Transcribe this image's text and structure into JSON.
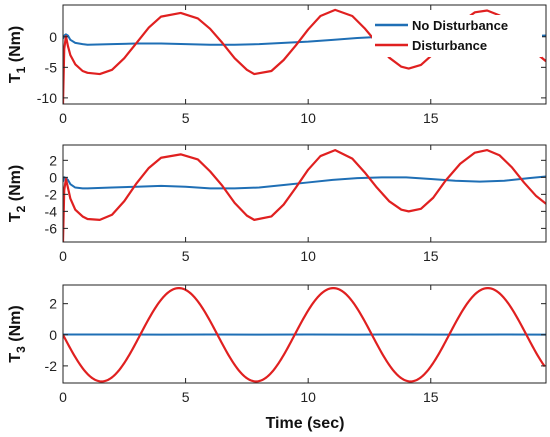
{
  "chart_data": [
    {
      "type": "line",
      "ylabel": {
        "main": "T",
        "sub": "1",
        "unit": " (Nm)"
      },
      "xlim": [
        0,
        19.7
      ],
      "ylim": [
        -11,
        5.2
      ],
      "yticks": [
        -10,
        -5,
        0
      ],
      "ytick_labels": [
        "-10",
        "-5",
        "0"
      ],
      "xticks": [
        0,
        5,
        10,
        15
      ],
      "xtick_labels": [
        "0",
        "5",
        "10",
        "15"
      ],
      "legend": {
        "position": "top-right"
      },
      "series": [
        {
          "name": "No Disturbance",
          "color": "#1f6fb5",
          "x": [
            0,
            0.05,
            0.12,
            0.2,
            0.3,
            0.5,
            0.8,
            1,
            2,
            3,
            4,
            5,
            6,
            7,
            8,
            9,
            10,
            11,
            12,
            13,
            14,
            15,
            16,
            17,
            18,
            19,
            19.7
          ],
          "y": [
            -0.3,
            0.2,
            0.4,
            0.2,
            -0.5,
            -1,
            -1.2,
            -1.3,
            -1.2,
            -1.1,
            -1.1,
            -1.2,
            -1.3,
            -1.3,
            -1.2,
            -1,
            -0.8,
            -0.5,
            -0.2,
            0,
            0,
            -0.1,
            -0.2,
            -0.2,
            -0.1,
            0.1,
            0.2
          ]
        },
        {
          "name": "Disturbance",
          "color": "#e02020",
          "x": [
            0,
            0.05,
            0.12,
            0.2,
            0.3,
            0.5,
            0.8,
            1,
            1.5,
            2,
            2.5,
            3,
            3.5,
            4,
            4.8,
            5.5,
            6,
            6.5,
            7,
            7.5,
            7.8,
            8.5,
            9,
            9.5,
            10,
            10.5,
            11.1,
            11.8,
            12.3,
            12.8,
            13.3,
            13.8,
            14.1,
            14.6,
            15.1,
            15.6,
            16.2,
            16.8,
            17.3,
            17.8,
            18.3,
            18.8,
            19.3,
            19.7
          ],
          "y": [
            -11,
            -2,
            0.1,
            -1.5,
            -3,
            -4.5,
            -5.6,
            -5.9,
            -6.1,
            -5.4,
            -3.5,
            -1,
            1.5,
            3.3,
            3.9,
            3,
            1.3,
            -1,
            -3.5,
            -5.4,
            -6.1,
            -5.6,
            -3.8,
            -1.4,
            1.2,
            3.4,
            4.4,
            3.4,
            1.4,
            -1,
            -3.4,
            -4.9,
            -5.2,
            -4.6,
            -2.8,
            -0.3,
            2.3,
            4,
            4.3,
            3.5,
            1.8,
            -0.5,
            -2.7,
            -4
          ]
        }
      ]
    },
    {
      "type": "line",
      "ylabel": {
        "main": "T",
        "sub": "2",
        "unit": " (Nm)"
      },
      "xlim": [
        0,
        19.7
      ],
      "ylim": [
        -7.6,
        3.8
      ],
      "yticks": [
        -6,
        -4,
        -2,
        0,
        2
      ],
      "ytick_labels": [
        "-6",
        "-4",
        "-2",
        "0",
        "2"
      ],
      "xticks": [
        0,
        5,
        10,
        15
      ],
      "xtick_labels": [
        "0",
        "5",
        "10",
        "15"
      ],
      "series": [
        {
          "name": "No Disturbance",
          "color": "#1f6fb5",
          "x": [
            0,
            0.05,
            0.12,
            0.2,
            0.3,
            0.5,
            0.8,
            1,
            2,
            3,
            4,
            5,
            6,
            7,
            8,
            9,
            10,
            11,
            12,
            13,
            14,
            15,
            16,
            17,
            18,
            19,
            19.7
          ],
          "y": [
            -0.5,
            0,
            -0.1,
            -0.3,
            -0.8,
            -1.2,
            -1.3,
            -1.3,
            -1.2,
            -1.1,
            -1,
            -1.1,
            -1.3,
            -1.3,
            -1.2,
            -0.9,
            -0.6,
            -0.3,
            -0.1,
            0,
            0,
            -0.2,
            -0.4,
            -0.5,
            -0.4,
            -0.1,
            0.1
          ]
        },
        {
          "name": "Disturbance",
          "color": "#e02020",
          "x": [
            0,
            0.05,
            0.12,
            0.2,
            0.3,
            0.5,
            0.8,
            1,
            1.5,
            2,
            2.5,
            3,
            3.5,
            4,
            4.8,
            5.5,
            6,
            6.5,
            7,
            7.5,
            7.8,
            8.5,
            9,
            9.5,
            10,
            10.5,
            11.1,
            11.8,
            12.3,
            12.8,
            13.3,
            13.8,
            14.1,
            14.6,
            15.1,
            15.6,
            16.2,
            16.8,
            17.3,
            17.8,
            18.3,
            18.8,
            19.3,
            19.7
          ],
          "y": [
            -7.6,
            -1.5,
            -0.2,
            -1.2,
            -2.5,
            -3.8,
            -4.6,
            -4.9,
            -5,
            -4.4,
            -2.8,
            -0.7,
            1.1,
            2.3,
            2.7,
            2.1,
            0.7,
            -1,
            -3,
            -4.5,
            -5,
            -4.6,
            -3.2,
            -1.2,
            0.9,
            2.5,
            3.2,
            2.2,
            0.6,
            -1.2,
            -2.8,
            -3.8,
            -4,
            -3.7,
            -2.4,
            -0.4,
            1.6,
            2.9,
            3.2,
            2.6,
            1.2,
            -0.6,
            -2.2,
            -3.1
          ]
        }
      ]
    },
    {
      "type": "line",
      "ylabel": {
        "main": "T",
        "sub": "3",
        "unit": " (Nm)"
      },
      "xlabel": "Time (sec)",
      "xlim": [
        0,
        19.7
      ],
      "ylim": [
        -3.1,
        3.2
      ],
      "yticks": [
        -2,
        0,
        2
      ],
      "ytick_labels": [
        "-2",
        "0",
        "2"
      ],
      "xticks": [
        0,
        5,
        10,
        15
      ],
      "xtick_labels": [
        "0",
        "5",
        "10",
        "15"
      ],
      "series": [
        {
          "name": "No Disturbance",
          "color": "#1f6fb5",
          "x": [
            0,
            2,
            4,
            6,
            8,
            10,
            12,
            14,
            16,
            18,
            19.7
          ],
          "y": [
            0.02,
            0.02,
            0.01,
            0.02,
            0.01,
            0.02,
            0.01,
            0.02,
            0.01,
            0.02,
            0.01
          ]
        },
        {
          "name": "Disturbance",
          "color": "#e02020",
          "sine": {
            "amplitude": 3,
            "period": 6.3,
            "phase_sign": -1
          }
        }
      ]
    }
  ]
}
